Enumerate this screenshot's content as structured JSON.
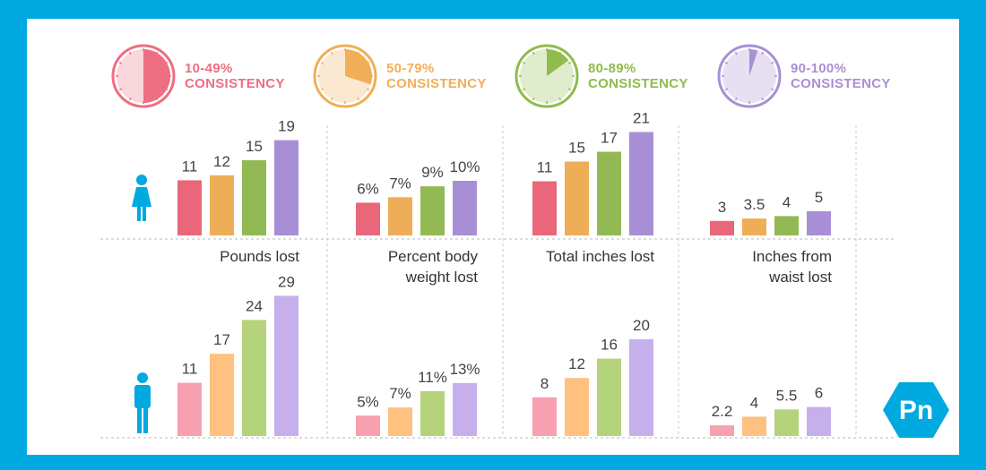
{
  "legend": [
    {
      "pct": "10-49%",
      "label": "CONSISTENCY",
      "color": "#ee6e82",
      "fill": 0.5
    },
    {
      "pct": "50-79%",
      "label": "CONSISTENCY",
      "color": "#f1ae57",
      "fill": 0.7
    },
    {
      "pct": "80-89%",
      "label": "CONSISTENCY",
      "color": "#8fbc4c",
      "fill": 0.85
    },
    {
      "pct": "90-100%",
      "label": "CONSISTENCY",
      "color": "#a98fd3",
      "fill": 0.95
    }
  ],
  "logo": {
    "text": "Pn",
    "color": "#00a9e0"
  },
  "colors": {
    "women": [
      "#e9667b",
      "#eeae57",
      "#93b954",
      "#a88fd5"
    ],
    "men": [
      "#f6a0b0",
      "#fec17f",
      "#b5d37a",
      "#c5b0ec"
    ]
  },
  "chart_data": {
    "type": "bar",
    "series_names": [
      "10-49% consistency",
      "50-79% consistency",
      "80-89% consistency",
      "90-100% consistency"
    ],
    "panels": [
      {
        "category": [
          "Pounds lost"
        ],
        "women": {
          "values": [
            11,
            12,
            15,
            19
          ],
          "labels": [
            "11",
            "12",
            "15",
            "19"
          ]
        },
        "men": {
          "values": [
            11,
            17,
            24,
            29
          ],
          "labels": [
            "11",
            "17",
            "24",
            "29"
          ]
        }
      },
      {
        "category": [
          "Percent body",
          "weight lost"
        ],
        "women": {
          "values": [
            6,
            7,
            9,
            10
          ],
          "labels": [
            "6%",
            "7%",
            "9%",
            "10%"
          ]
        },
        "men": {
          "values": [
            5,
            7,
            11,
            13
          ],
          "labels": [
            "5%",
            "7%",
            "11%",
            "13%"
          ]
        }
      },
      {
        "category": [
          "Total inches lost"
        ],
        "women": {
          "values": [
            11,
            15,
            17,
            21
          ],
          "labels": [
            "11",
            "15",
            "17",
            "21"
          ]
        },
        "men": {
          "values": [
            8,
            12,
            16,
            20
          ],
          "labels": [
            "8",
            "12",
            "16",
            "20"
          ]
        }
      },
      {
        "category": [
          "Inches from",
          "waist lost"
        ],
        "women": {
          "values": [
            3,
            3.5,
            4,
            5
          ],
          "labels": [
            "3",
            "3.5",
            "4",
            "5"
          ]
        },
        "men": {
          "values": [
            2.2,
            4,
            5.5,
            6
          ],
          "labels": [
            "2.2",
            "4",
            "5.5",
            "6"
          ]
        }
      }
    ]
  }
}
